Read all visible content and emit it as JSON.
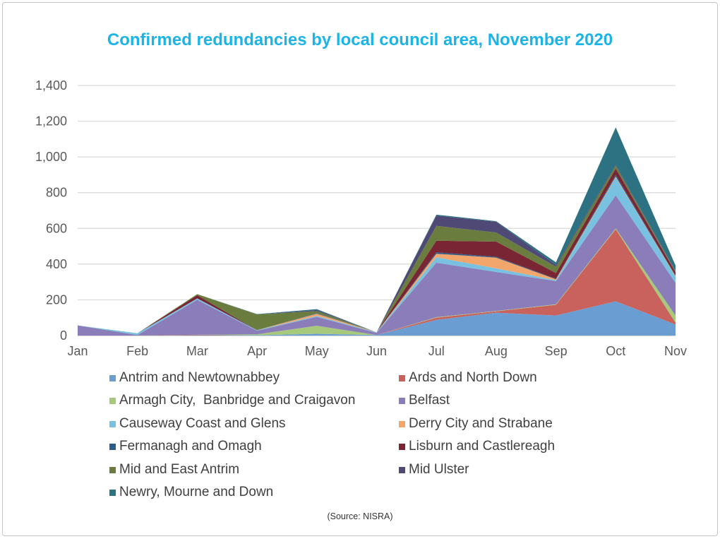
{
  "chart_data": {
    "type": "area",
    "stacked": true,
    "title": "Confirmed redundancies by local council area, November 2020",
    "categories": [
      "Jan",
      "Feb",
      "Mar",
      "Apr",
      "May",
      "Jun",
      "Jul",
      "Aug",
      "Sep",
      "Oct",
      "Nov"
    ],
    "ylim": [
      0,
      1400
    ],
    "yticks": [
      0,
      200,
      400,
      600,
      800,
      1000,
      1200,
      1400
    ],
    "ytick_labels": [
      "0",
      "200",
      "400",
      "600",
      "800",
      "1,000",
      "1,200",
      "1,400"
    ],
    "grid": true,
    "legend_position": "bottom",
    "series": [
      {
        "name": "Antrim and Newtownabbey",
        "color": "#6A9ED3",
        "values": [
          0,
          0,
          2,
          2,
          10,
          3,
          88,
          128,
          112,
          192,
          62
        ]
      },
      {
        "name": "Ards and North Down",
        "color": "#C9625C",
        "values": [
          0,
          0,
          3,
          0,
          0,
          0,
          12,
          8,
          60,
          403,
          10
        ]
      },
      {
        "name": "Armagh City,  Banbridge and Craigavon",
        "color": "#A6C97B",
        "values": [
          0,
          0,
          0,
          5,
          45,
          0,
          3,
          2,
          3,
          5,
          40
        ]
      },
      {
        "name": "Belfast",
        "color": "#8A7DBA",
        "values": [
          57,
          3,
          195,
          20,
          50,
          12,
          305,
          218,
          130,
          185,
          183
        ]
      },
      {
        "name": "Causeway Coast and Glens",
        "color": "#78C1E0",
        "values": [
          0,
          10,
          8,
          3,
          5,
          3,
          30,
          20,
          5,
          100,
          35
        ]
      },
      {
        "name": "Derry City and Strabane",
        "color": "#F3A66C",
        "values": [
          0,
          0,
          0,
          0,
          12,
          0,
          20,
          60,
          5,
          5,
          3
        ]
      },
      {
        "name": "Fermanagh and Omagh",
        "color": "#2D5B8B",
        "values": [
          0,
          0,
          0,
          0,
          3,
          0,
          8,
          5,
          3,
          10,
          3
        ]
      },
      {
        "name": "Lisburn and Castlereagh",
        "color": "#7A2533",
        "values": [
          0,
          0,
          18,
          0,
          0,
          0,
          65,
          85,
          32,
          35,
          18
        ]
      },
      {
        "name": "Mid and East Antrim",
        "color": "#6B7D3E",
        "values": [
          0,
          0,
          6,
          88,
          12,
          0,
          83,
          51,
          35,
          15,
          5
        ]
      },
      {
        "name": "Mid Ulster",
        "color": "#4F4A75",
        "values": [
          0,
          0,
          0,
          0,
          6,
          0,
          58,
          60,
          10,
          5,
          3
        ]
      },
      {
        "name": "Newry, Mourne and Down",
        "color": "#2C7282",
        "values": [
          0,
          0,
          0,
          2,
          5,
          0,
          5,
          3,
          15,
          210,
          30
        ]
      }
    ]
  },
  "source": "(Source: NISRA)"
}
